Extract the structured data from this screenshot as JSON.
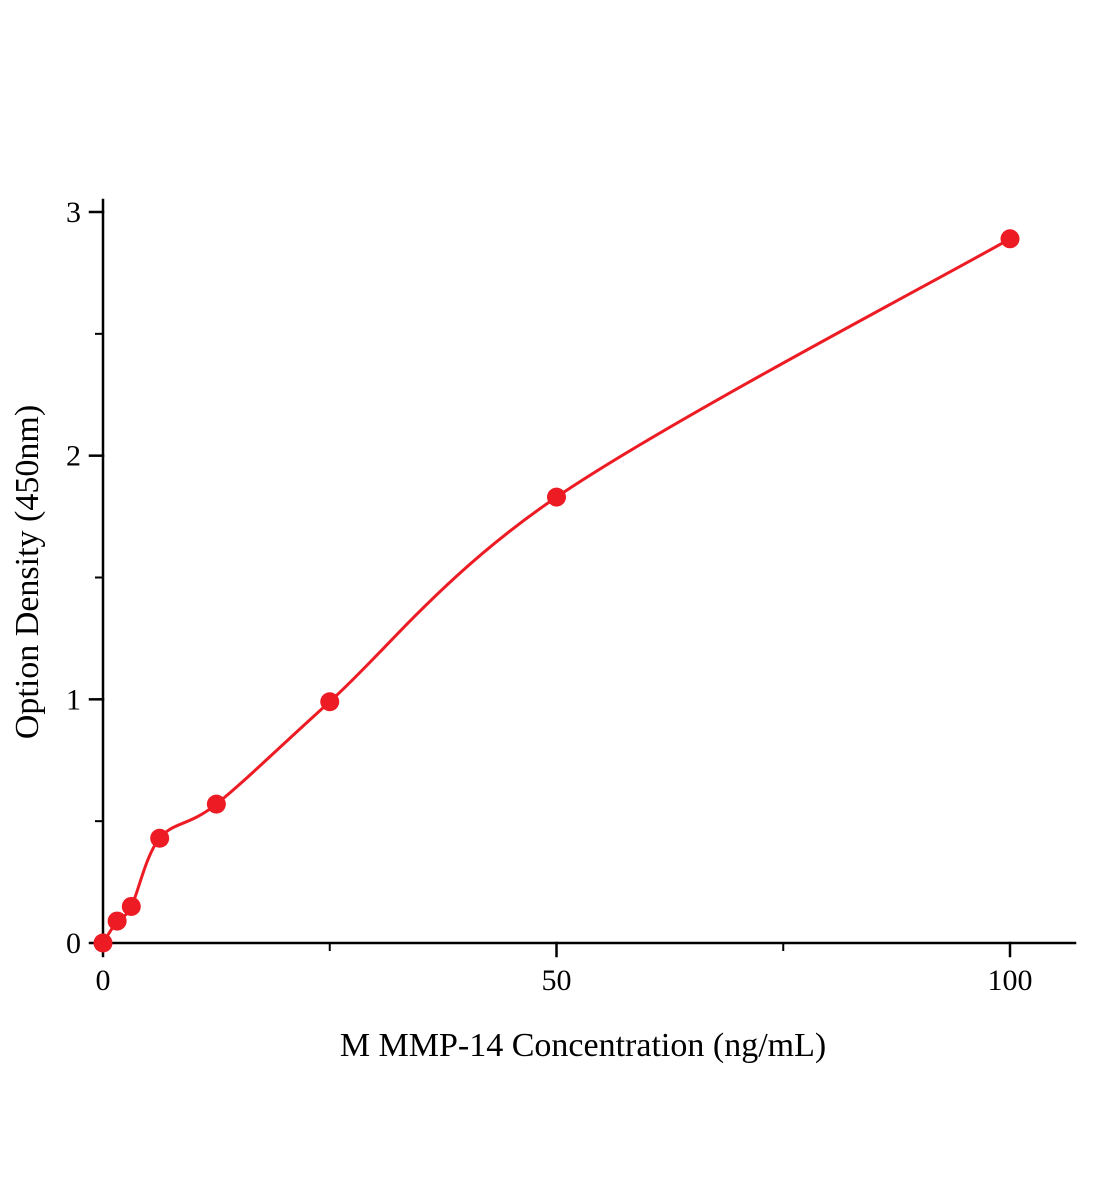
{
  "page": {
    "background": "#ffffff"
  },
  "chart_data": {
    "type": "scatter",
    "title": "",
    "xlabel": "M MMP-14  Concentration (ng/mL)",
    "ylabel": "Option Density (450nm)",
    "x": [
      0,
      1.56,
      3.12,
      6.25,
      12.5,
      25,
      50,
      100
    ],
    "y": [
      0.0,
      0.09,
      0.15,
      0.43,
      0.57,
      0.99,
      1.83,
      2.89
    ],
    "xlim": [
      0,
      107
    ],
    "ylim": [
      0,
      3.05
    ],
    "x_major_ticks": [
      0,
      50,
      100
    ],
    "x_minor_ticks": [
      25,
      75
    ],
    "y_major_ticks": [
      0,
      1,
      2,
      3
    ],
    "y_minor_ticks": [
      0.5,
      1.5,
      2.5
    ],
    "grid": false,
    "legend": "none",
    "series_color": "#ed1c24",
    "axis_color": "#000000",
    "curve": "smooth fitted curve through data points"
  }
}
